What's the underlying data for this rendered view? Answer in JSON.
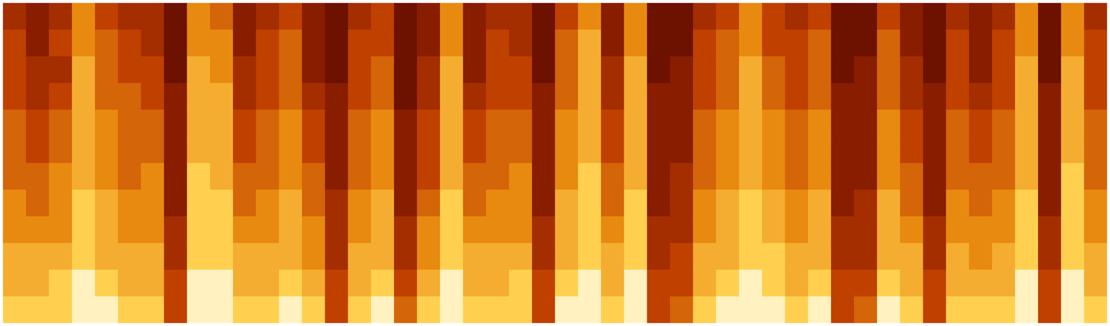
{
  "chart_data": {
    "type": "heatmap",
    "tick_labels": false,
    "color_range": [
      0,
      10
    ],
    "cells": [
      [
        4,
        5,
        5,
        5,
        6,
        6,
        6,
        7,
        7,
        8,
        8,
        9
      ],
      [
        3,
        3,
        4,
        4,
        5,
        5,
        6,
        6,
        7,
        8,
        8,
        9
      ],
      [
        4,
        5,
        4,
        5,
        6,
        6,
        7,
        7,
        7,
        8,
        9,
        9
      ],
      [
        7,
        7,
        8,
        8,
        8,
        8,
        8,
        9,
        9,
        9,
        10,
        10
      ],
      [
        5,
        6,
        6,
        6,
        7,
        7,
        7,
        8,
        8,
        8,
        9,
        10
      ],
      [
        4,
        5,
        5,
        6,
        6,
        6,
        6,
        7,
        7,
        8,
        8,
        9
      ],
      [
        4,
        4,
        5,
        5,
        6,
        6,
        7,
        7,
        7,
        8,
        8,
        9
      ],
      [
        2,
        2,
        2,
        3,
        3,
        3,
        3,
        3,
        4,
        4,
        5,
        5
      ],
      [
        7,
        7,
        8,
        8,
        8,
        8,
        9,
        9,
        9,
        9,
        10,
        10
      ],
      [
        6,
        7,
        7,
        8,
        8,
        8,
        8,
        9,
        9,
        9,
        10,
        10
      ],
      [
        3,
        3,
        4,
        4,
        5,
        5,
        6,
        6,
        7,
        8,
        8,
        9
      ],
      [
        4,
        5,
        5,
        5,
        6,
        6,
        6,
        7,
        7,
        8,
        8,
        9
      ],
      [
        5,
        6,
        6,
        6,
        7,
        7,
        7,
        8,
        8,
        8,
        9,
        10
      ],
      [
        3,
        3,
        3,
        4,
        5,
        5,
        6,
        6,
        7,
        7,
        8,
        9
      ],
      [
        2,
        2,
        2,
        3,
        3,
        3,
        3,
        4,
        4,
        4,
        5,
        5
      ],
      [
        4,
        5,
        5,
        5,
        6,
        6,
        6,
        7,
        7,
        8,
        8,
        9
      ],
      [
        5,
        5,
        6,
        6,
        7,
        7,
        7,
        8,
        8,
        8,
        9,
        10
      ],
      [
        2,
        2,
        2,
        2,
        3,
        3,
        3,
        3,
        4,
        4,
        5,
        6
      ],
      [
        3,
        3,
        4,
        4,
        5,
        5,
        5,
        6,
        7,
        7,
        8,
        9
      ],
      [
        7,
        7,
        8,
        8,
        8,
        8,
        8,
        9,
        9,
        9,
        10,
        10
      ],
      [
        3,
        3,
        3,
        4,
        5,
        5,
        6,
        6,
        7,
        8,
        8,
        9
      ],
      [
        4,
        5,
        5,
        5,
        6,
        6,
        6,
        7,
        7,
        8,
        8,
        9
      ],
      [
        4,
        4,
        5,
        5,
        6,
        6,
        7,
        7,
        7,
        8,
        9,
        9
      ],
      [
        2,
        2,
        2,
        3,
        3,
        3,
        3,
        3,
        4,
        4,
        5,
        5
      ],
      [
        5,
        6,
        6,
        6,
        7,
        7,
        7,
        8,
        8,
        8,
        9,
        10
      ],
      [
        7,
        8,
        8,
        8,
        8,
        8,
        9,
        9,
        9,
        9,
        10,
        10
      ],
      [
        3,
        3,
        4,
        4,
        5,
        5,
        6,
        6,
        7,
        8,
        8,
        9
      ],
      [
        7,
        7,
        8,
        8,
        8,
        8,
        8,
        9,
        9,
        9,
        10,
        10
      ],
      [
        2,
        2,
        2,
        3,
        3,
        3,
        3,
        3,
        4,
        4,
        5,
        5
      ],
      [
        2,
        2,
        3,
        3,
        3,
        3,
        4,
        4,
        4,
        5,
        5,
        6
      ],
      [
        4,
        5,
        5,
        5,
        6,
        6,
        6,
        7,
        7,
        8,
        8,
        9
      ],
      [
        5,
        6,
        6,
        6,
        7,
        7,
        7,
        8,
        8,
        8,
        9,
        10
      ],
      [
        7,
        7,
        8,
        8,
        8,
        8,
        8,
        9,
        9,
        9,
        10,
        10
      ],
      [
        5,
        5,
        6,
        6,
        7,
        7,
        7,
        8,
        8,
        9,
        9,
        10
      ],
      [
        4,
        5,
        5,
        5,
        6,
        6,
        6,
        7,
        7,
        8,
        8,
        9
      ],
      [
        5,
        6,
        6,
        6,
        7,
        7,
        7,
        8,
        8,
        8,
        9,
        10
      ],
      [
        2,
        2,
        2,
        3,
        3,
        3,
        3,
        3,
        4,
        4,
        5,
        5
      ],
      [
        2,
        2,
        3,
        3,
        3,
        3,
        3,
        4,
        4,
        4,
        5,
        6
      ],
      [
        5,
        6,
        6,
        6,
        7,
        7,
        7,
        8,
        8,
        8,
        9,
        10
      ],
      [
        3,
        3,
        4,
        4,
        5,
        5,
        6,
        6,
        7,
        8,
        8,
        9
      ],
      [
        2,
        2,
        2,
        3,
        3,
        3,
        3,
        3,
        4,
        4,
        5,
        5
      ],
      [
        4,
        5,
        5,
        5,
        6,
        6,
        6,
        7,
        7,
        8,
        8,
        9
      ],
      [
        3,
        3,
        3,
        4,
        5,
        5,
        6,
        6,
        7,
        7,
        8,
        9
      ],
      [
        4,
        5,
        5,
        5,
        6,
        6,
        6,
        7,
        7,
        8,
        8,
        9
      ],
      [
        7,
        7,
        8,
        8,
        8,
        8,
        8,
        9,
        9,
        9,
        10,
        10
      ],
      [
        2,
        2,
        2,
        3,
        3,
        3,
        3,
        3,
        4,
        4,
        5,
        5
      ],
      [
        7,
        7,
        8,
        8,
        8,
        8,
        9,
        9,
        9,
        9,
        10,
        10
      ],
      [
        4,
        5,
        5,
        5,
        6,
        6,
        6,
        7,
        7,
        8,
        8,
        9
      ]
    ]
  }
}
